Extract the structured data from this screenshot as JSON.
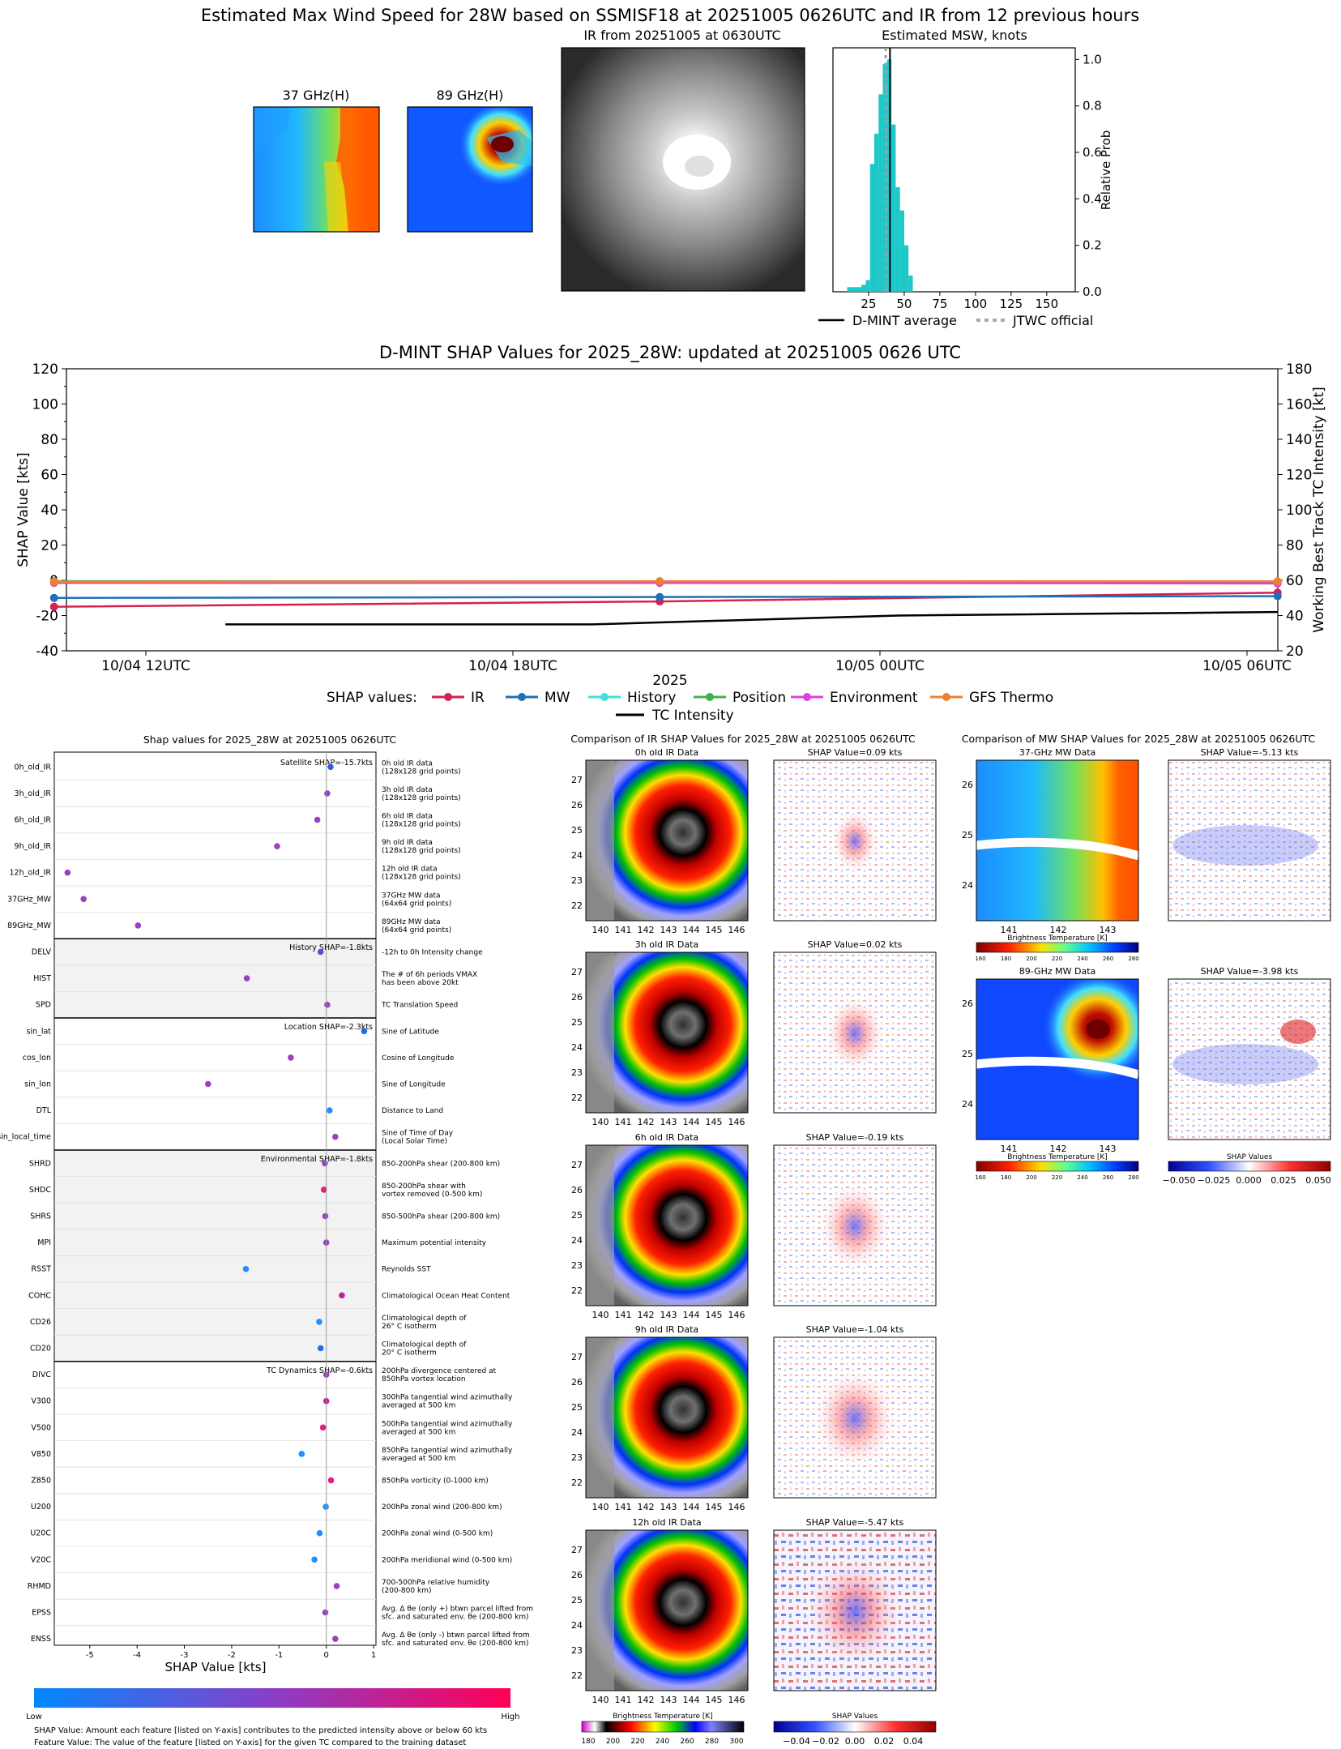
{
  "header": {
    "title": "Estimated Max Wind Speed for 28W based on SSMISF18 at 20251005 0626UTC and IR from 12 previous hours",
    "mw37_title": "37 GHz(H)",
    "mw89_title": "89 GHz(H)",
    "ir_title": "IR from 20251005 at 0630UTC",
    "hist_title": "Estimated MSW, knots",
    "hist_ylabel": "Relative Prob",
    "legend_dmint": "D-MINT average",
    "legend_jtwc": "JTWC official"
  },
  "timeseries": {
    "title": "D-MINT SHAP Values for 2025_28W: updated at 20251005 0626 UTC",
    "ylabel_left": "SHAP Value [kts]",
    "ylabel_right": "Working Best Track TC Intensity [kt]",
    "xlabel": "2025",
    "legend_prefix": "SHAP values:"
  },
  "shap_summary": {
    "title": "Shap values for 2025_28W at 20251005 0626UTC",
    "xlabel": "SHAP Value [kts]",
    "colorbar_low": "Low",
    "colorbar_high": "High",
    "footnote1": "SHAP Value: Amount each feature [listed on Y-axis] contributes to the predicted intensity above or below 60 kts",
    "footnote2": "Feature Value: The value of the feature [listed on Y-axis] for the given TC compared to the training dataset"
  },
  "ir_comparison": {
    "title": "Comparison of IR SHAP Values for 2025_28W at 20251005 0626UTC",
    "cbar_label": "Brightness Temperature [K]",
    "cbar_ticks": [
      "180",
      "200",
      "220",
      "240",
      "260",
      "280",
      "300"
    ],
    "shap_cbar_label": "SHAP Values",
    "shap_cbar_ticks": [
      "−0.04",
      "−0.02",
      "0.00",
      "0.02",
      "0.04"
    ],
    "lat_ticks": [
      "27",
      "26",
      "25",
      "24",
      "23",
      "22"
    ],
    "lon_ticks": [
      "140",
      "141",
      "142",
      "143",
      "144",
      "145",
      "146"
    ],
    "panels": [
      {
        "ir_title": "0h old IR Data",
        "shap_title": "SHAP Value=0.09 kts"
      },
      {
        "ir_title": "3h old IR Data",
        "shap_title": "SHAP Value=0.02 kts"
      },
      {
        "ir_title": "6h old IR Data",
        "shap_title": "SHAP Value=-0.19 kts"
      },
      {
        "ir_title": "9h old IR Data",
        "shap_title": "SHAP Value=-1.04 kts"
      },
      {
        "ir_title": "12h old IR Data",
        "shap_title": "SHAP Value=-5.47 kts"
      }
    ]
  },
  "mw_comparison": {
    "title": "Comparison of MW SHAP Values for 2025_28W at 20251005 0626UTC",
    "cbar_label": "Brightness Temperature [K]",
    "cbar_ticks": [
      "160",
      "180",
      "200",
      "220",
      "240",
      "260",
      "280"
    ],
    "shap_cbar_label": "SHAP Values",
    "shap_cbar_ticks": [
      "−0.050",
      "−0.025",
      "0.000",
      "0.025",
      "0.050"
    ],
    "lat_ticks": [
      "26",
      "25",
      "24"
    ],
    "lon_ticks": [
      "141",
      "142",
      "143"
    ],
    "panels": [
      {
        "mw_title": "37-GHz MW Data",
        "shap_title": "SHAP Value=-5.13 kts"
      },
      {
        "mw_title": "89-GHz MW Data",
        "shap_title": "SHAP Value=-3.98 kts"
      }
    ]
  },
  "chart_data": [
    {
      "type": "bar",
      "id": "msw_histogram",
      "title": "Estimated MSW, knots",
      "ylabel": "Relative Prob",
      "xlim": [
        0,
        170
      ],
      "ylim": [
        0,
        1.05
      ],
      "xticks": [
        25,
        50,
        75,
        100,
        125,
        150
      ],
      "yticks": [
        "0.0",
        "0.2",
        "0.4",
        "0.6",
        "0.8",
        "1.0"
      ],
      "bins": [
        {
          "x": 10,
          "width": 10,
          "value": 0.02
        },
        {
          "x": 20,
          "width": 3,
          "value": 0.03
        },
        {
          "x": 23,
          "width": 3,
          "value": 0.05
        },
        {
          "x": 26,
          "width": 3,
          "value": 0.55
        },
        {
          "x": 29,
          "width": 3,
          "value": 0.68
        },
        {
          "x": 32,
          "width": 3,
          "value": 0.85
        },
        {
          "x": 35,
          "width": 3,
          "value": 0.98
        },
        {
          "x": 38,
          "width": 3,
          "value": 1.0
        },
        {
          "x": 41,
          "width": 3,
          "value": 0.72
        },
        {
          "x": 44,
          "width": 3,
          "value": 0.45
        },
        {
          "x": 47,
          "width": 3,
          "value": 0.35
        },
        {
          "x": 50,
          "width": 3,
          "value": 0.2
        },
        {
          "x": 53,
          "width": 3,
          "value": 0.07
        }
      ],
      "dmint_average": 40,
      "jtwc_official": 37
    },
    {
      "type": "line",
      "id": "shap_timeseries",
      "title": "D-MINT SHAP Values for 2025_28W: updated at 20251005 0626 UTC",
      "xlabel": "2025",
      "ylabel": "SHAP Value [kts]",
      "ylabel_right": "Working Best Track TC Intensity [kt]",
      "x_hours": [
        0,
        6,
        12,
        18
      ],
      "xticks": [
        "10/04 12UTC",
        "10/04 18UTC",
        "10/05 00UTC",
        "10/05 06UTC"
      ],
      "ylim": [
        -40,
        120
      ],
      "ylim_right": [
        20,
        180
      ],
      "yticks": [
        -40,
        -20,
        0,
        20,
        40,
        60,
        80,
        100,
        120
      ],
      "yticks_right": [
        20,
        40,
        60,
        80,
        100,
        120,
        140,
        160,
        180
      ],
      "series": [
        {
          "name": "IR",
          "color": "#d62050",
          "x": [
            -1.5,
            8.4,
            18.5
          ],
          "values": [
            -15,
            -12,
            -7
          ]
        },
        {
          "name": "MW",
          "color": "#1f6fb8",
          "x": [
            -1.5,
            8.4,
            18.5
          ],
          "values": [
            -10,
            -9.5,
            -9
          ]
        },
        {
          "name": "History",
          "color": "#40e0d8",
          "x": [
            -1.5,
            8.4,
            18.5
          ],
          "values": [
            -1,
            -1,
            -1.5
          ]
        },
        {
          "name": "Position",
          "color": "#3cb44b",
          "x": [
            -1.5,
            8.4,
            18.5
          ],
          "values": [
            -0.5,
            -0.5,
            -1
          ]
        },
        {
          "name": "Environment",
          "color": "#e040e0",
          "x": [
            -1.5,
            8.4,
            18.5
          ],
          "values": [
            -1.5,
            -1.5,
            -1.8
          ]
        },
        {
          "name": "GFS Thermo",
          "color": "#f08030",
          "x": [
            -1.5,
            8.4,
            18.5
          ],
          "values": [
            -0.8,
            -0.6,
            -0.6
          ]
        }
      ],
      "tc_intensity": {
        "name": "TC Intensity",
        "x": [
          1.3,
          7.3,
          12.3,
          18.5
        ],
        "values": [
          35,
          35,
          40,
          42
        ]
      }
    },
    {
      "type": "scatter",
      "id": "shap_features",
      "title": "Shap values for 2025_28W at 20251005 0626UTC",
      "xlabel": "SHAP Value [kts]",
      "xlim": [
        -5.75,
        1.05
      ],
      "xticks": [
        -5,
        -4,
        -3,
        -2,
        -1,
        0,
        1
      ],
      "groups": [
        {
          "label": "Satellite SHAP=-15.7kts",
          "shaded": false,
          "features": [
            {
              "name": "0h_old_IR",
              "desc": [
                "0h old IR data",
                "(128x128 grid points)"
              ],
              "shap": 0.09,
              "color": "#3a5ce0"
            },
            {
              "name": "3h_old_IR",
              "desc": [
                "3h old IR data",
                "(128x128 grid points)"
              ],
              "shap": 0.02,
              "color": "#9b40c0"
            },
            {
              "name": "6h_old_IR",
              "desc": [
                "6h old IR data",
                "(128x128 grid points)"
              ],
              "shap": -0.19,
              "color": "#9b40c0"
            },
            {
              "name": "9h_old_IR",
              "desc": [
                "9h old IR data",
                "(128x128 grid points)"
              ],
              "shap": -1.04,
              "color": "#9b40c0"
            },
            {
              "name": "12h_old_IR",
              "desc": [
                "12h old IR data",
                "(128x128 grid points)"
              ],
              "shap": -5.47,
              "color": "#9b40c0"
            },
            {
              "name": "37GHz_MW",
              "desc": [
                "37GHz MW data",
                "(64x64 grid points)"
              ],
              "shap": -5.13,
              "color": "#9b40c0"
            },
            {
              "name": "89GHz_MW",
              "desc": [
                "89GHz MW data",
                "(64x64 grid points)"
              ],
              "shap": -3.98,
              "color": "#9b40c0"
            }
          ]
        },
        {
          "label": "History SHAP=-1.8kts",
          "shaded": true,
          "features": [
            {
              "name": "DELV",
              "desc": [
                "-12h to 0h Intensity change"
              ],
              "shap": -0.12,
              "color": "#5a50d8"
            },
            {
              "name": "HIST",
              "desc": [
                "The # of 6h periods VMAX",
                "has been above 20kt"
              ],
              "shap": -1.68,
              "color": "#9b40c0"
            },
            {
              "name": "SPD",
              "desc": [
                "TC Translation Speed"
              ],
              "shap": 0.02,
              "color": "#9b40c0"
            }
          ]
        },
        {
          "label": "Location SHAP=-2.3kts",
          "shaded": false,
          "features": [
            {
              "name": "sin_lat",
              "desc": [
                "Sine of Latitude"
              ],
              "shap": 0.8,
              "color": "#1f6fe0"
            },
            {
              "name": "cos_lon",
              "desc": [
                "Cosine of Longitude"
              ],
              "shap": -0.75,
              "color": "#9b40c0"
            },
            {
              "name": "sin_lon",
              "desc": [
                "Sine of Longitude"
              ],
              "shap": -2.5,
              "color": "#9b40c0"
            },
            {
              "name": "DTL",
              "desc": [
                "Distance to Land"
              ],
              "shap": 0.07,
              "color": "#1e90ff"
            },
            {
              "name": "sin_local_time",
              "desc": [
                "Sine of Time of Day",
                "(Local Solar Time)"
              ],
              "shap": 0.19,
              "color": "#9b40c0"
            }
          ]
        },
        {
          "label": "Environmental SHAP=-1.8kts",
          "shaded": true,
          "features": [
            {
              "name": "SHRD",
              "desc": [
                "850-200hPa shear (200-800 km)"
              ],
              "shap": -0.03,
              "color": "#9b40c0"
            },
            {
              "name": "SHDC",
              "desc": [
                "850-200hPa shear with",
                "vortex removed (0-500 km)"
              ],
              "shap": -0.05,
              "color": "#e0207a"
            },
            {
              "name": "SHRS",
              "desc": [
                "850-500hPa shear (200-800 km)"
              ],
              "shap": -0.02,
              "color": "#9b40c0"
            },
            {
              "name": "MPI",
              "desc": [
                "Maximum potential intensity"
              ],
              "shap": 0.0,
              "color": "#9b40c0"
            },
            {
              "name": "RSST",
              "desc": [
                "Reynolds SST"
              ],
              "shap": -1.7,
              "color": "#1e90ff"
            },
            {
              "name": "COHC",
              "desc": [
                "Climatological Ocean Heat Content"
              ],
              "shap": 0.33,
              "color": "#c020a0"
            },
            {
              "name": "CD26",
              "desc": [
                "Climatological depth of",
                "26° C isotherm"
              ],
              "shap": -0.15,
              "color": "#1e90ff"
            },
            {
              "name": "CD20",
              "desc": [
                "Climatological depth of",
                "20° C isotherm"
              ],
              "shap": -0.12,
              "color": "#2070e0"
            }
          ]
        },
        {
          "label": "TC Dynamics SHAP=-0.6kts",
          "shaded": false,
          "features": [
            {
              "name": "DIVC",
              "desc": [
                "200hPa divergence centered at",
                "850hPa vortex location"
              ],
              "shap": 0.0,
              "color": "#9b40c0"
            },
            {
              "name": "V300",
              "desc": [
                "300hPa tangential wind azimuthally",
                "averaged at 500 km"
              ],
              "shap": 0.0,
              "color": "#c020a0"
            },
            {
              "name": "V500",
              "desc": [
                "500hPa tangential wind azimuthally",
                "averaged at 500 km"
              ],
              "shap": -0.07,
              "color": "#e0207a"
            },
            {
              "name": "V850",
              "desc": [
                "850hPa tangential wind azimuthally",
                "averaged at 500 km"
              ],
              "shap": -0.52,
              "color": "#1e90ff"
            },
            {
              "name": "Z850",
              "desc": [
                "850hPa vorticity (0-1000 km)"
              ],
              "shap": 0.1,
              "color": "#e0207a"
            },
            {
              "name": "U200",
              "desc": [
                "200hPa zonal wind (200-800 km)"
              ],
              "shap": -0.01,
              "color": "#1e90ff"
            },
            {
              "name": "U20C",
              "desc": [
                "200hPa zonal wind (0-500 km)"
              ],
              "shap": -0.14,
              "color": "#1e90ff"
            },
            {
              "name": "V20C",
              "desc": [
                "200hPa meridional wind (0-500 km)"
              ],
              "shap": -0.25,
              "color": "#1e90ff"
            },
            {
              "name": "RHMD",
              "desc": [
                "700-500hPa relative humidity",
                "(200-800 km)"
              ],
              "shap": 0.22,
              "color": "#9b40c0"
            },
            {
              "name": "EPSS",
              "desc": [
                "Avg. Δ θe (only +) btwn parcel lifted from",
                "sfc. and saturated env. θe (200-800 km)"
              ],
              "shap": -0.02,
              "color": "#9b40c0"
            },
            {
              "name": "ENSS",
              "desc": [
                "Avg. Δ θe (only -) btwn parcel lifted from",
                "sfc. and saturated env. θe (200-800 km)"
              ],
              "shap": 0.19,
              "color": "#9b40c0"
            }
          ]
        }
      ]
    }
  ]
}
